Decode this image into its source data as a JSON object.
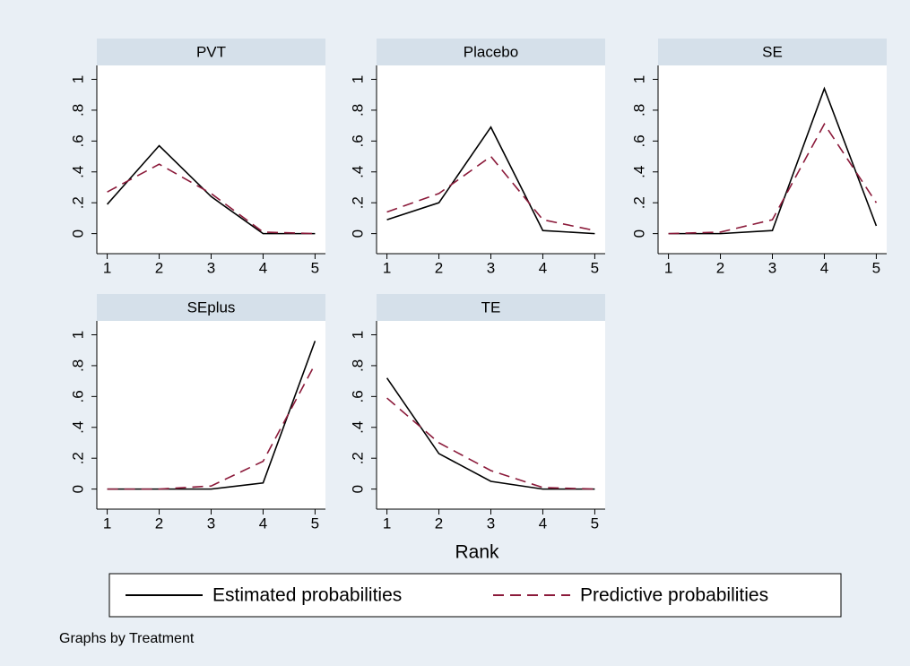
{
  "chart_data": [
    {
      "type": "line",
      "title": "PVT",
      "x": [
        1,
        2,
        3,
        4,
        5
      ],
      "series": [
        {
          "name": "Estimated probabilities",
          "color": "#000000",
          "line_style": "solid",
          "values": [
            0.19,
            0.57,
            0.24,
            0,
            0
          ]
        },
        {
          "name": "Predictive probabilities",
          "color": "#8b1a3a",
          "line_style": "dashed",
          "values": [
            0.27,
            0.45,
            0.26,
            0.01,
            0
          ]
        }
      ],
      "xlim": [
        0.8,
        5.2
      ],
      "xticks": [
        1,
        2,
        3,
        4,
        5
      ],
      "ylim": [
        -0.13,
        1.09
      ],
      "yticks": [
        0,
        {
          "value": 0.2,
          "label": ".2"
        },
        {
          "value": 0.4,
          "label": ".4"
        },
        {
          "value": 0.6,
          "label": ".6"
        },
        {
          "value": 0.8,
          "label": ".8"
        },
        1
      ],
      "grid": false
    },
    {
      "type": "line",
      "title": "Placebo",
      "x": [
        1,
        2,
        3,
        4,
        5
      ],
      "series": [
        {
          "name": "Estimated probabilities",
          "color": "#000000",
          "line_style": "solid",
          "values": [
            0.09,
            0.2,
            0.69,
            0.02,
            0
          ]
        },
        {
          "name": "Predictive probabilities",
          "color": "#8b1a3a",
          "line_style": "dashed",
          "values": [
            0.14,
            0.26,
            0.5,
            0.09,
            0.02
          ]
        }
      ],
      "xlim": [
        0.8,
        5.2
      ],
      "xticks": [
        1,
        2,
        3,
        4,
        5
      ],
      "ylim": [
        -0.13,
        1.09
      ],
      "yticks": [
        0,
        {
          "value": 0.2,
          "label": ".2"
        },
        {
          "value": 0.4,
          "label": ".4"
        },
        {
          "value": 0.6,
          "label": ".6"
        },
        {
          "value": 0.8,
          "label": ".8"
        },
        1
      ],
      "grid": false
    },
    {
      "type": "line",
      "title": "SE",
      "x": [
        1,
        2,
        3,
        4,
        5
      ],
      "series": [
        {
          "name": "Estimated probabilities",
          "color": "#000000",
          "line_style": "solid",
          "values": [
            0,
            0,
            0.02,
            0.94,
            0.05
          ]
        },
        {
          "name": "Predictive probabilities",
          "color": "#8b1a3a",
          "line_style": "dashed",
          "values": [
            0,
            0.01,
            0.09,
            0.71,
            0.2
          ]
        }
      ],
      "xlim": [
        0.8,
        5.2
      ],
      "xticks": [
        1,
        2,
        3,
        4,
        5
      ],
      "ylim": [
        -0.13,
        1.09
      ],
      "yticks": [
        0,
        {
          "value": 0.2,
          "label": ".2"
        },
        {
          "value": 0.4,
          "label": ".4"
        },
        {
          "value": 0.6,
          "label": ".6"
        },
        {
          "value": 0.8,
          "label": ".8"
        },
        1
      ],
      "grid": false
    },
    {
      "type": "line",
      "title": "SEplus",
      "x": [
        1,
        2,
        3,
        4,
        5
      ],
      "series": [
        {
          "name": "Estimated probabilities",
          "color": "#000000",
          "line_style": "solid",
          "values": [
            0,
            0,
            0,
            0.04,
            0.96
          ]
        },
        {
          "name": "Predictive probabilities",
          "color": "#8b1a3a",
          "line_style": "dashed",
          "values": [
            0,
            0,
            0.02,
            0.18,
            0.81
          ]
        }
      ],
      "xlim": [
        0.8,
        5.2
      ],
      "xticks": [
        1,
        2,
        3,
        4,
        5
      ],
      "ylim": [
        -0.13,
        1.09
      ],
      "yticks": [
        0,
        {
          "value": 0.2,
          "label": ".2"
        },
        {
          "value": 0.4,
          "label": ".4"
        },
        {
          "value": 0.6,
          "label": ".6"
        },
        {
          "value": 0.8,
          "label": ".8"
        },
        1
      ],
      "grid": false
    },
    {
      "type": "line",
      "title": "TE",
      "x": [
        1,
        2,
        3,
        4,
        5
      ],
      "series": [
        {
          "name": "Estimated probabilities",
          "color": "#000000",
          "line_style": "solid",
          "values": [
            0.72,
            0.23,
            0.05,
            0,
            0
          ]
        },
        {
          "name": "Predictive probabilities",
          "color": "#8b1a3a",
          "line_style": "dashed",
          "values": [
            0.59,
            0.3,
            0.12,
            0.01,
            0
          ]
        }
      ],
      "xlim": [
        0.8,
        5.2
      ],
      "xticks": [
        1,
        2,
        3,
        4,
        5
      ],
      "ylim": [
        -0.13,
        1.09
      ],
      "yticks": [
        0,
        {
          "value": 0.2,
          "label": ".2"
        },
        {
          "value": 0.4,
          "label": ".4"
        },
        {
          "value": 0.6,
          "label": ".6"
        },
        {
          "value": 0.8,
          "label": ".8"
        },
        1
      ],
      "grid": false
    }
  ],
  "x_label": "Rank",
  "note": "Graphs by Treatment"
}
